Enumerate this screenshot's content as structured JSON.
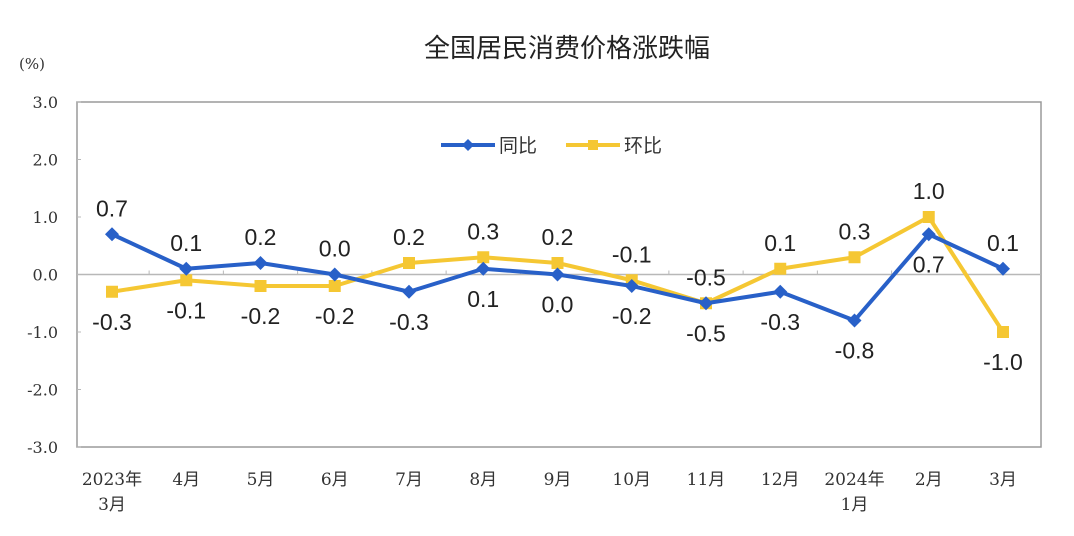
{
  "chart_data": {
    "type": "line",
    "title": "全国居民消费价格涨跌幅",
    "ylabel": "(%)",
    "xlabel": "",
    "ylim": [
      -3.0,
      3.0
    ],
    "yticks": [
      "3.0",
      "2.0",
      "1.0",
      "0.0",
      "-1.0",
      "-2.0",
      "-3.0"
    ],
    "grid": false,
    "legend_position": "top-center",
    "categories": [
      [
        "2023年",
        "3月"
      ],
      [
        "4月"
      ],
      [
        "5月"
      ],
      [
        "6月"
      ],
      [
        "7月"
      ],
      [
        "8月"
      ],
      [
        "9月"
      ],
      [
        "10月"
      ],
      [
        "11月"
      ],
      [
        "12月"
      ],
      [
        "2024年",
        "1月"
      ],
      [
        "2月"
      ],
      [
        "3月"
      ]
    ],
    "series": [
      {
        "name": "同比",
        "color": "#2860C8",
        "marker": "diamond",
        "values": [
          0.7,
          0.1,
          0.2,
          0.0,
          -0.3,
          0.1,
          0.0,
          -0.2,
          -0.5,
          -0.3,
          -0.8,
          0.7,
          0.1
        ],
        "labels": [
          "0.7",
          "0.1",
          "0.2",
          "0.0",
          "-0.3",
          "0.1",
          "0.0",
          "-0.2",
          "-0.5",
          "-0.3",
          "-0.8",
          "0.7",
          "0.1"
        ]
      },
      {
        "name": "环比",
        "color": "#F5C733",
        "marker": "square",
        "values": [
          -0.3,
          -0.1,
          -0.2,
          -0.2,
          0.2,
          0.3,
          0.2,
          -0.1,
          -0.5,
          0.1,
          0.3,
          1.0,
          -1.0
        ],
        "labels": [
          "-0.3",
          "-0.1",
          "-0.2",
          "-0.2",
          "0.2",
          "0.3",
          "0.2",
          "-0.1",
          "-0.5",
          "0.1",
          "0.3",
          "1.0",
          "-1.0"
        ]
      }
    ]
  },
  "layout_hints": {
    "blue_label_pos": [
      "above",
      "above",
      "above",
      "above",
      "below",
      "below",
      "below",
      "below",
      "below",
      "below",
      "below",
      "below",
      "above"
    ],
    "yellow_label_pos": [
      "below",
      "below",
      "below",
      "below",
      "above",
      "above",
      "above",
      "above",
      "above",
      "above",
      "above",
      "above",
      "below"
    ]
  }
}
